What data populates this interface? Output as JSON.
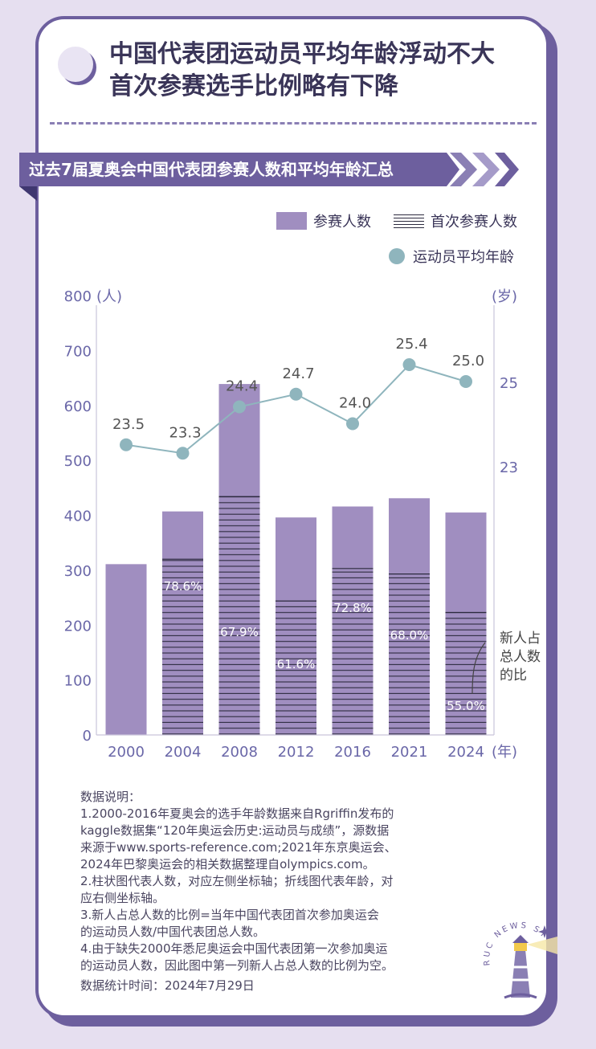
{
  "title_lines": [
    "中国代表团运动员平均年龄浮动不大",
    "首次参赛选手比例略有下降"
  ],
  "banner": "过去7届夏奥会中国代表团参赛人数和平均年龄汇总",
  "legend": {
    "bar": "参赛人数",
    "hatch": "首次参赛人数",
    "line": "运动员平均年龄"
  },
  "colors": {
    "bar": "#a08ec0",
    "line": "#8fb5bd",
    "accent": "#6d5f9e",
    "axis_text": "#6a67a8"
  },
  "annotation": [
    "新人占",
    "总人数",
    "的比"
  ],
  "notes": [
    "数据说明：",
    "1.2000-2016年夏奥会的选手年龄数据来自Rgriffin发布的",
    "kaggle数据集“120年奥运会历史:运动员与成绩”，源数据",
    "来源于www.sports-reference.com;2021年东京奥运会、",
    "2024年巴黎奥运会的相关数据整理自olympics.com。",
    "2.柱状图代表人数，对应左侧坐标轴；折线图代表年龄，对",
    "应右侧坐标轴。",
    "3.新人占总人数的比例=当年中国代表团首次参加奥运会",
    "的运动员人数/中国代表团总人数。",
    "4.由于缺失2000年悉尼奥运会中国代表团第一次参加奥运",
    "的运动员人数，因此图中第一列新人占总人数的比例为空。",
    "数据统计时间：2024年7月29日"
  ],
  "stamp_text": "RUC NEWS STUDIO",
  "chart_data": {
    "type": "bar",
    "categories": [
      "2000",
      "2004",
      "2008",
      "2012",
      "2016",
      "2021",
      "2024"
    ],
    "x_unit": "(年)",
    "series": [
      {
        "name": "参赛人数",
        "type": "bar",
        "axis": "left",
        "values": [
          311,
          407,
          639,
          396,
          416,
          431,
          405
        ]
      },
      {
        "name": "首次参赛人数",
        "type": "bar",
        "axis": "left",
        "values": [
          null,
          320,
          434,
          244,
          303,
          293,
          223
        ]
      },
      {
        "name": "运动员平均年龄",
        "type": "line",
        "axis": "right",
        "values": [
          23.5,
          23.3,
          24.4,
          24.7,
          24.0,
          25.4,
          25.0
        ]
      }
    ],
    "ratio_labels": [
      "",
      "78.6%",
      "67.9%",
      "61.6%",
      "72.8%",
      "68.0%",
      "55.0%"
    ],
    "value_labels": [
      "23.5",
      "23.3",
      "24.4",
      "24.7",
      "24.0",
      "25.4",
      "25.0"
    ],
    "y_left": {
      "unit": "(人)",
      "ticks": [
        0,
        100,
        200,
        300,
        400,
        500,
        600,
        700,
        800
      ],
      "ylim": [
        0,
        800
      ]
    },
    "y_right": {
      "unit": "(岁)",
      "ticks": [
        "23",
        "25"
      ],
      "tick_values": [
        23,
        25
      ]
    }
  }
}
